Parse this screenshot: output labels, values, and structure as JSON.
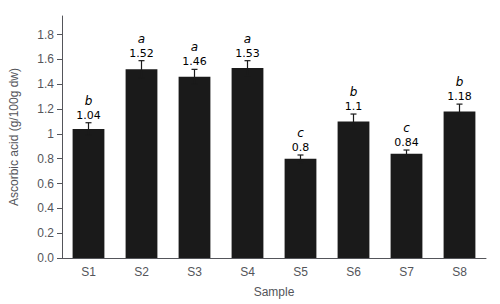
{
  "chart_data": {
    "type": "bar",
    "xlabel": "Sample",
    "ylabel": "Ascorbic acid (g/100g dw)",
    "categories": [
      "S1",
      "S2",
      "S3",
      "S4",
      "S5",
      "S6",
      "S7",
      "S8"
    ],
    "values": [
      1.04,
      1.52,
      1.46,
      1.53,
      0.8,
      1.1,
      0.84,
      1.18
    ],
    "errors": [
      0.05,
      0.07,
      0.06,
      0.06,
      0.03,
      0.06,
      0.03,
      0.06
    ],
    "annotations": [
      "b",
      "a",
      "a",
      "a",
      "c",
      "b",
      "c",
      "b"
    ],
    "data_labels": true,
    "color": "#1a1a1a",
    "ylim": [
      0,
      1.95
    ],
    "yticks": [
      {
        "value": 0.0,
        "label": "0.0"
      },
      0.2,
      0.4,
      0.6,
      0.8,
      1,
      1.2,
      1.4,
      1.6,
      1.8
    ],
    "grid": false
  }
}
